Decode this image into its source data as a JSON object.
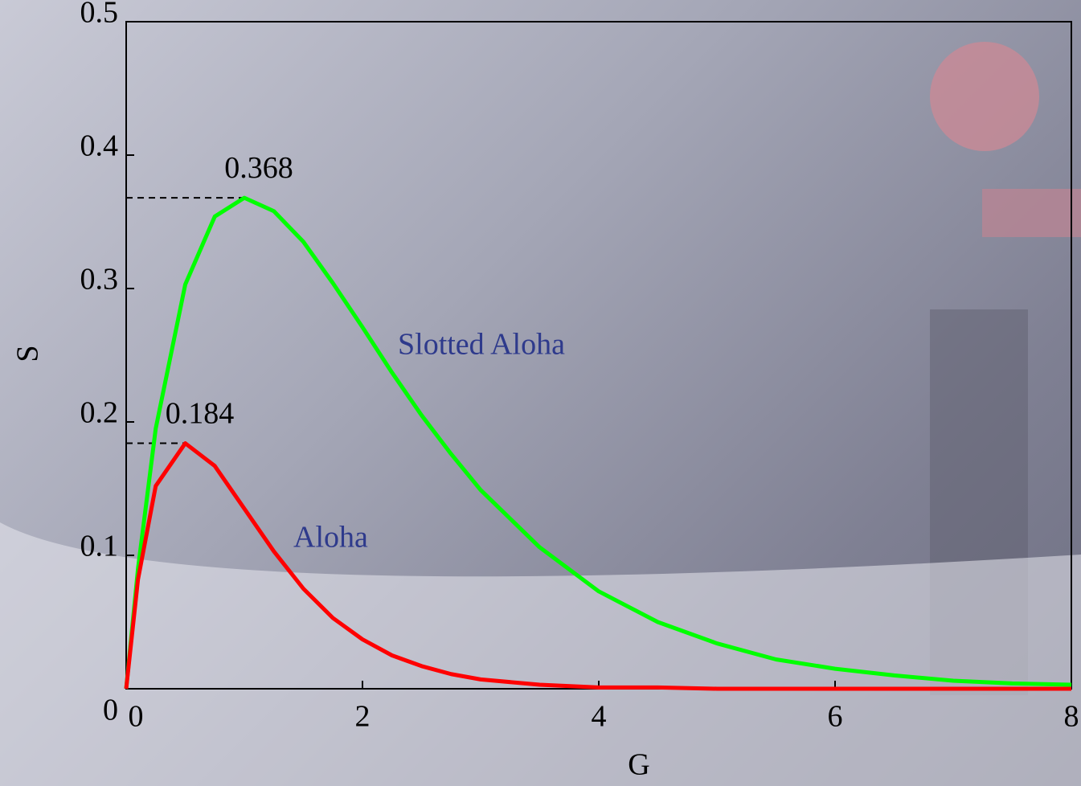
{
  "chart_data": {
    "type": "line",
    "x": [
      0,
      0.1,
      0.25,
      0.5,
      0.75,
      1,
      1.25,
      1.5,
      1.75,
      2,
      2.25,
      2.5,
      2.75,
      3,
      3.5,
      4,
      4.5,
      5,
      5.5,
      6,
      6.5,
      7,
      7.5,
      8
    ],
    "series": [
      {
        "name": "Slotted Aloha",
        "color": "#00ff00",
        "label_color": "#2e3a8c",
        "values": [
          0,
          0.09,
          0.195,
          0.303,
          0.354,
          0.368,
          0.358,
          0.335,
          0.304,
          0.271,
          0.237,
          0.205,
          0.176,
          0.149,
          0.106,
          0.073,
          0.05,
          0.034,
          0.022,
          0.015,
          0.01,
          0.006,
          0.004,
          0.003
        ]
      },
      {
        "name": "Aloha",
        "color": "#ff0000",
        "label_color": "#2e3a8c",
        "values": [
          0,
          0.082,
          0.152,
          0.184,
          0.167,
          0.135,
          0.103,
          0.075,
          0.053,
          0.037,
          0.025,
          0.017,
          0.011,
          0.007,
          0.003,
          0.001,
          0.001,
          0,
          0,
          0,
          0,
          0,
          0,
          0
        ]
      }
    ],
    "annotations": [
      {
        "text": "0.368",
        "x": 1,
        "y": 0.368
      },
      {
        "text": "0.184",
        "x": 0.5,
        "y": 0.184
      }
    ],
    "x_label": "G",
    "y_label": "S",
    "xlim": [
      0,
      8
    ],
    "ylim": [
      0,
      0.5
    ],
    "xticks": [
      0,
      2,
      4,
      6,
      8
    ],
    "yticks": [
      0,
      0.1,
      0.2,
      0.3,
      0.4,
      0.5
    ]
  }
}
